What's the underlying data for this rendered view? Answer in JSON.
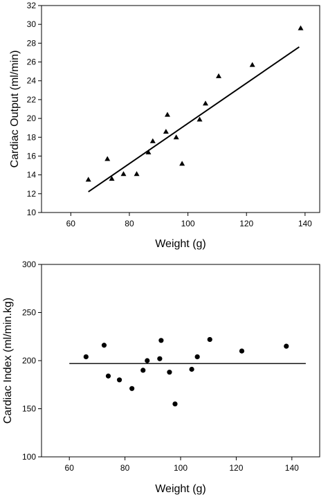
{
  "chart_data": [
    {
      "type": "scatter",
      "title": "",
      "xlabel": "Weight (g)",
      "ylabel": "Cardiac Output  (ml/min)",
      "xlim": [
        50,
        145
      ],
      "ylim": [
        10,
        32
      ],
      "xticks": [
        60,
        80,
        100,
        120,
        140
      ],
      "yticks": [
        10,
        12,
        14,
        16,
        18,
        20,
        22,
        24,
        26,
        28,
        30,
        32
      ],
      "grid": false,
      "marker": "triangle",
      "series": [
        {
          "x": [
            66,
            72.5,
            74,
            78,
            82.5,
            86.5,
            88,
            92.5,
            93,
            96,
            98,
            104,
            106,
            110.5,
            122,
            138.5
          ],
          "y": [
            13.5,
            15.7,
            13.6,
            14.1,
            14.1,
            16.4,
            17.6,
            18.6,
            20.4,
            18.0,
            15.2,
            19.9,
            21.6,
            24.5,
            25.7,
            29.6
          ]
        }
      ],
      "fit_line": {
        "x": [
          66,
          138
        ],
        "y": [
          12.2,
          27.6
        ]
      }
    },
    {
      "type": "scatter",
      "title": "",
      "xlabel": "Weight (g)",
      "ylabel": "Cardiac Index (ml/min.kg)",
      "xlim": [
        50,
        150
      ],
      "ylim": [
        100,
        300
      ],
      "xticks": [
        60,
        80,
        100,
        120,
        140
      ],
      "yticks": [
        100,
        150,
        200,
        250,
        300
      ],
      "grid": false,
      "marker": "circle",
      "series": [
        {
          "x": [
            66,
            72.5,
            74,
            78,
            82.5,
            86.5,
            88,
            92.5,
            93,
            96,
            98,
            104,
            106,
            110.5,
            122,
            138
          ],
          "y": [
            204,
            216,
            184,
            180,
            171,
            190,
            200,
            202,
            221,
            188,
            155,
            191,
            204,
            222,
            210,
            215
          ]
        }
      ],
      "fit_line": {
        "x": [
          60,
          145
        ],
        "y": [
          197,
          197
        ]
      }
    }
  ]
}
